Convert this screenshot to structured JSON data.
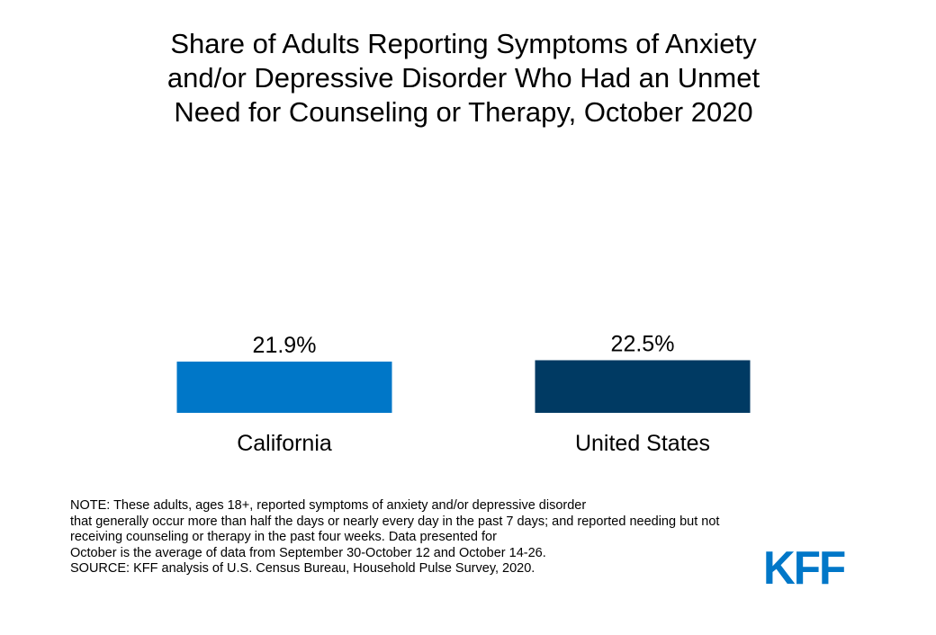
{
  "title_lines": [
    "Share of Adults Reporting Symptoms of Anxiety",
    "and/or Depressive Disorder Who Had an Unmet",
    "Need for Counseling or Therapy, October 2020"
  ],
  "note_lines": [
    "NOTE: These adults, ages 18+, reported symptoms of anxiety and/or depressive disorder",
    "that generally occur more than half the days or nearly every day in the past 7 days; and reported needing but not",
    "receiving counseling or therapy in the past four weeks. Data presented for",
    "October is the average of data from September 30-October 12 and October 14-26.",
    "SOURCE: KFF analysis of U.S. Census Bureau, Household Pulse Survey, 2020."
  ],
  "logo_text": "KFF",
  "colors": {
    "california": "#0077C8",
    "united_states": "#003A63",
    "brand": "#0077C8"
  },
  "chart_data": {
    "type": "bar",
    "title": "Share of Adults Reporting Symptoms of Anxiety and/or Depressive Disorder Who Had an Unmet Need for Counseling or Therapy, October 2020",
    "categories": [
      "California",
      "United States"
    ],
    "values": [
      21.9,
      22.5
    ],
    "data_labels": [
      "21.9%",
      "22.5%"
    ],
    "bar_colors": [
      "#0077C8",
      "#003A63"
    ],
    "xlabel": "",
    "ylabel": "",
    "grid": false
  }
}
